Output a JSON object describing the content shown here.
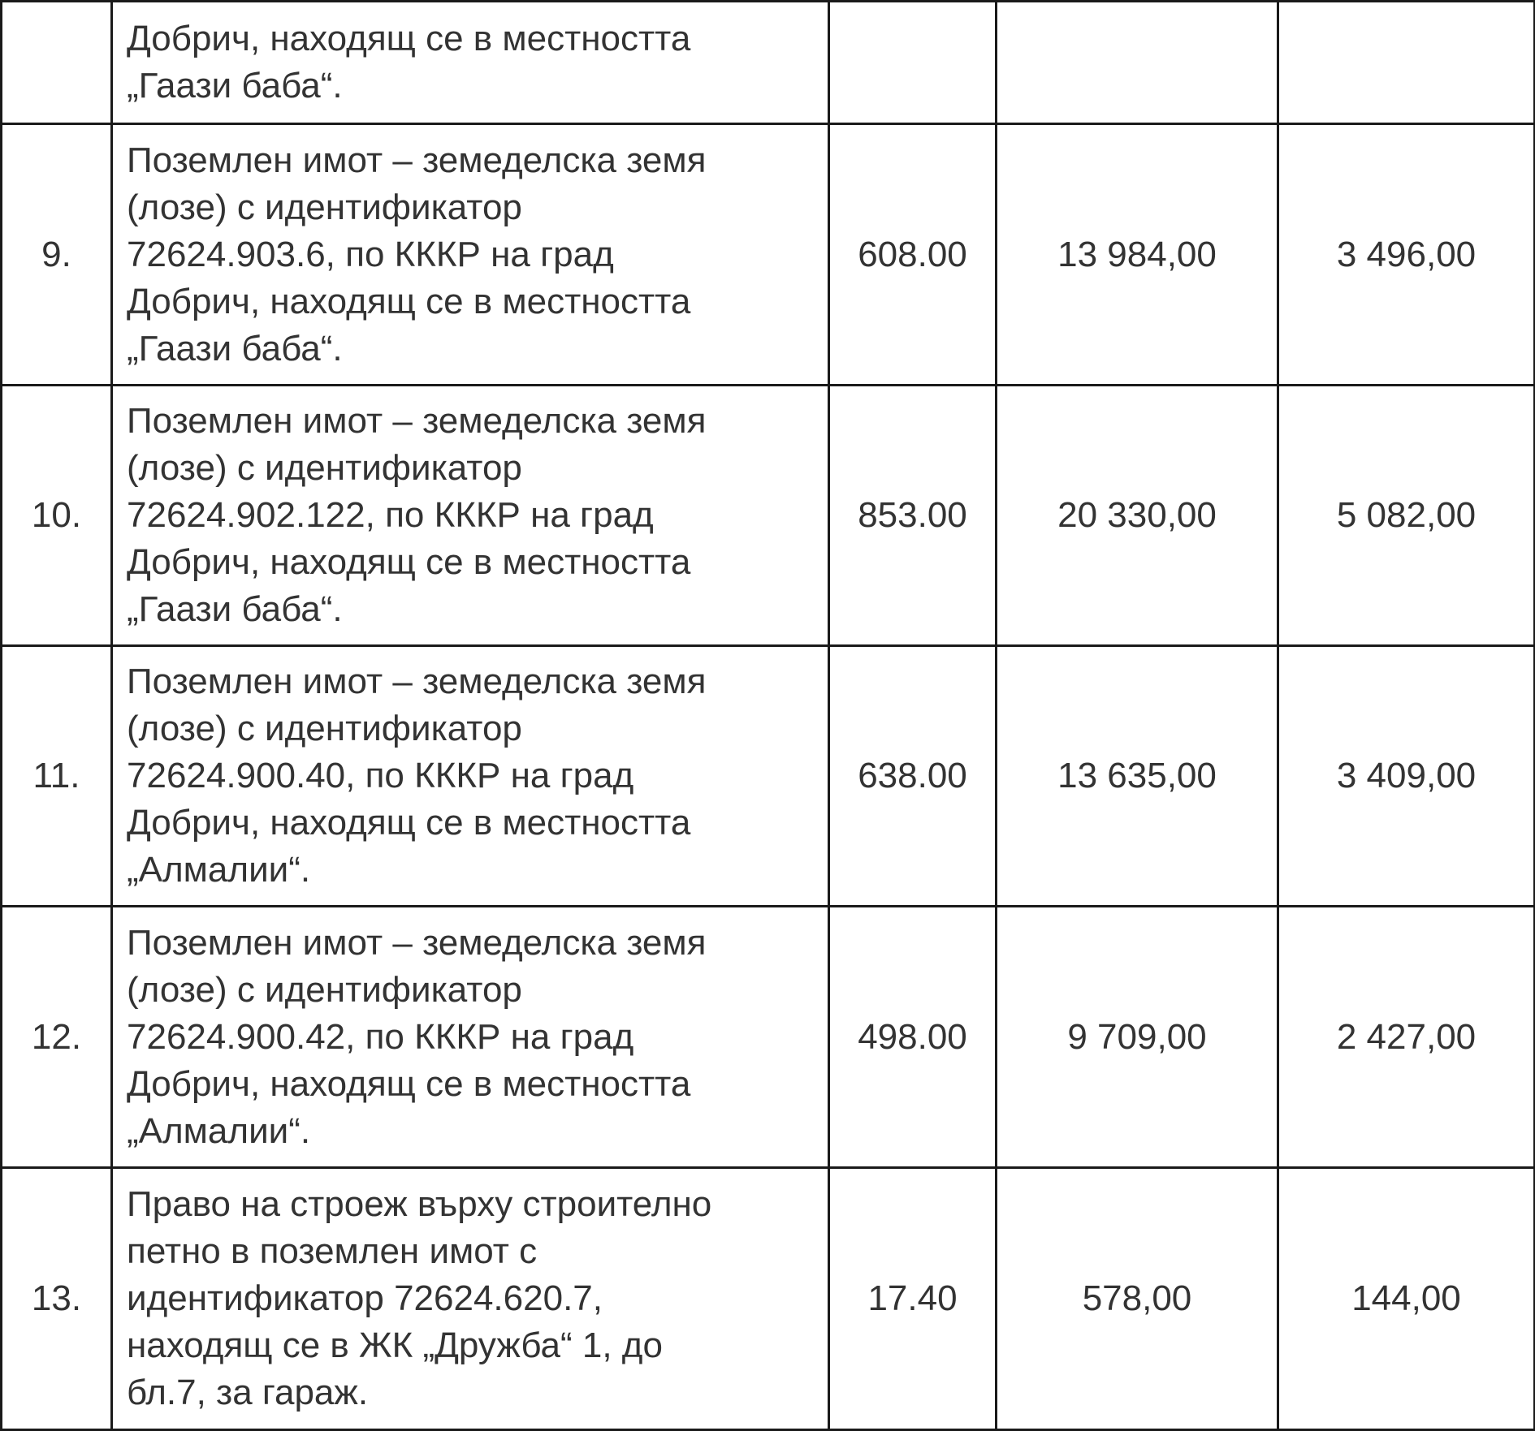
{
  "rows": [
    {
      "no": "",
      "lines": [
        "Добрич, находящ се в местността",
        "„Гаази баба“."
      ],
      "area": "",
      "price1": "",
      "price2": ""
    },
    {
      "no": "9.",
      "lines": [
        "Поземлен имот – земеделска земя",
        "(лозе) с идентификатор",
        "72624.903.6, по КККР на град",
        "Добрич, находящ се в местността",
        "„Гаази баба“."
      ],
      "area": "608.00",
      "price1": "13 984,00",
      "price2": "3 496,00"
    },
    {
      "no": "10.",
      "lines": [
        "Поземлен имот – земеделска земя",
        "(лозе) с идентификатор",
        "72624.902.122, по КККР на град",
        "Добрич, находящ се в местността",
        "„Гаази баба“."
      ],
      "area": "853.00",
      "price1": "20 330,00",
      "price2": "5 082,00"
    },
    {
      "no": "11.",
      "lines": [
        "Поземлен имот – земеделска земя",
        "(лозе) с идентификатор",
        "72624.900.40, по КККР на град",
        "Добрич, находящ се в местността",
        "„Алмалии“."
      ],
      "area": "638.00",
      "price1": "13 635,00",
      "price2": "3 409,00"
    },
    {
      "no": "12.",
      "lines": [
        "Поземлен имот – земеделска земя",
        "(лозе) с идентификатор",
        "72624.900.42, по КККР на град",
        "Добрич, находящ се в местността",
        "„Алмалии“."
      ],
      "area": "498.00",
      "price1": "9 709,00",
      "price2": "2 427,00"
    },
    {
      "no": "13.",
      "lines": [
        "Право на строеж върху строително",
        "петно в поземлен имот с",
        "идентификатор 72624.620.7,",
        "находящ се в ЖК „Дружба“ 1, до",
        "бл.7, за гараж."
      ],
      "area": "17.40",
      "price1": "578,00",
      "price2": "144,00"
    }
  ]
}
